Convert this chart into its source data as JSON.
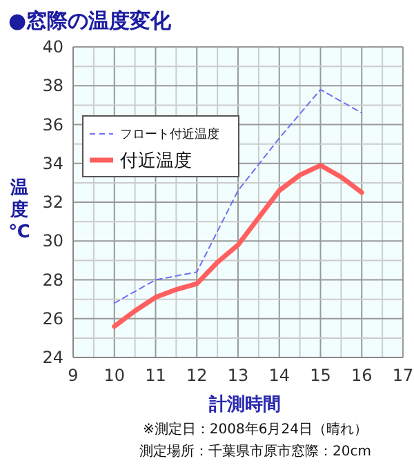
{
  "chart_data": {
    "type": "line",
    "title": "●窓際の温度変化",
    "xlabel": "計測時間",
    "ylabel": "温度℃",
    "annotations": [
      "※測定日：2008年6月24日（晴れ）",
      "測定場所：千葉県市原市窓際：20cm"
    ],
    "series": [
      {
        "name": "フロート付近温度",
        "color": "#6f6ff5",
        "line_style": "dashed",
        "x": [
          10,
          11,
          12,
          13,
          14,
          15,
          16
        ],
        "values": [
          26.8,
          28.0,
          28.4,
          32.6,
          35.3,
          37.8,
          36.6
        ]
      },
      {
        "name": "付近温度",
        "color": "#ff5f5f",
        "line_style": "solid",
        "x": [
          10,
          10.5,
          11,
          11.5,
          12,
          12.5,
          13,
          13.5,
          14,
          14.5,
          15,
          15.5,
          16
        ],
        "values": [
          25.6,
          26.4,
          27.1,
          27.5,
          27.8,
          28.9,
          29.8,
          31.2,
          32.6,
          33.4,
          33.9,
          33.3,
          32.5
        ]
      }
    ],
    "xlim": [
      9,
      17
    ],
    "xticks": [
      9,
      10,
      11,
      12,
      13,
      14,
      15,
      16,
      17
    ],
    "ylim": [
      24,
      40
    ],
    "yticks": [
      24,
      26,
      28,
      30,
      32,
      34,
      36,
      38,
      40
    ],
    "grid": true,
    "legend": "top left"
  }
}
